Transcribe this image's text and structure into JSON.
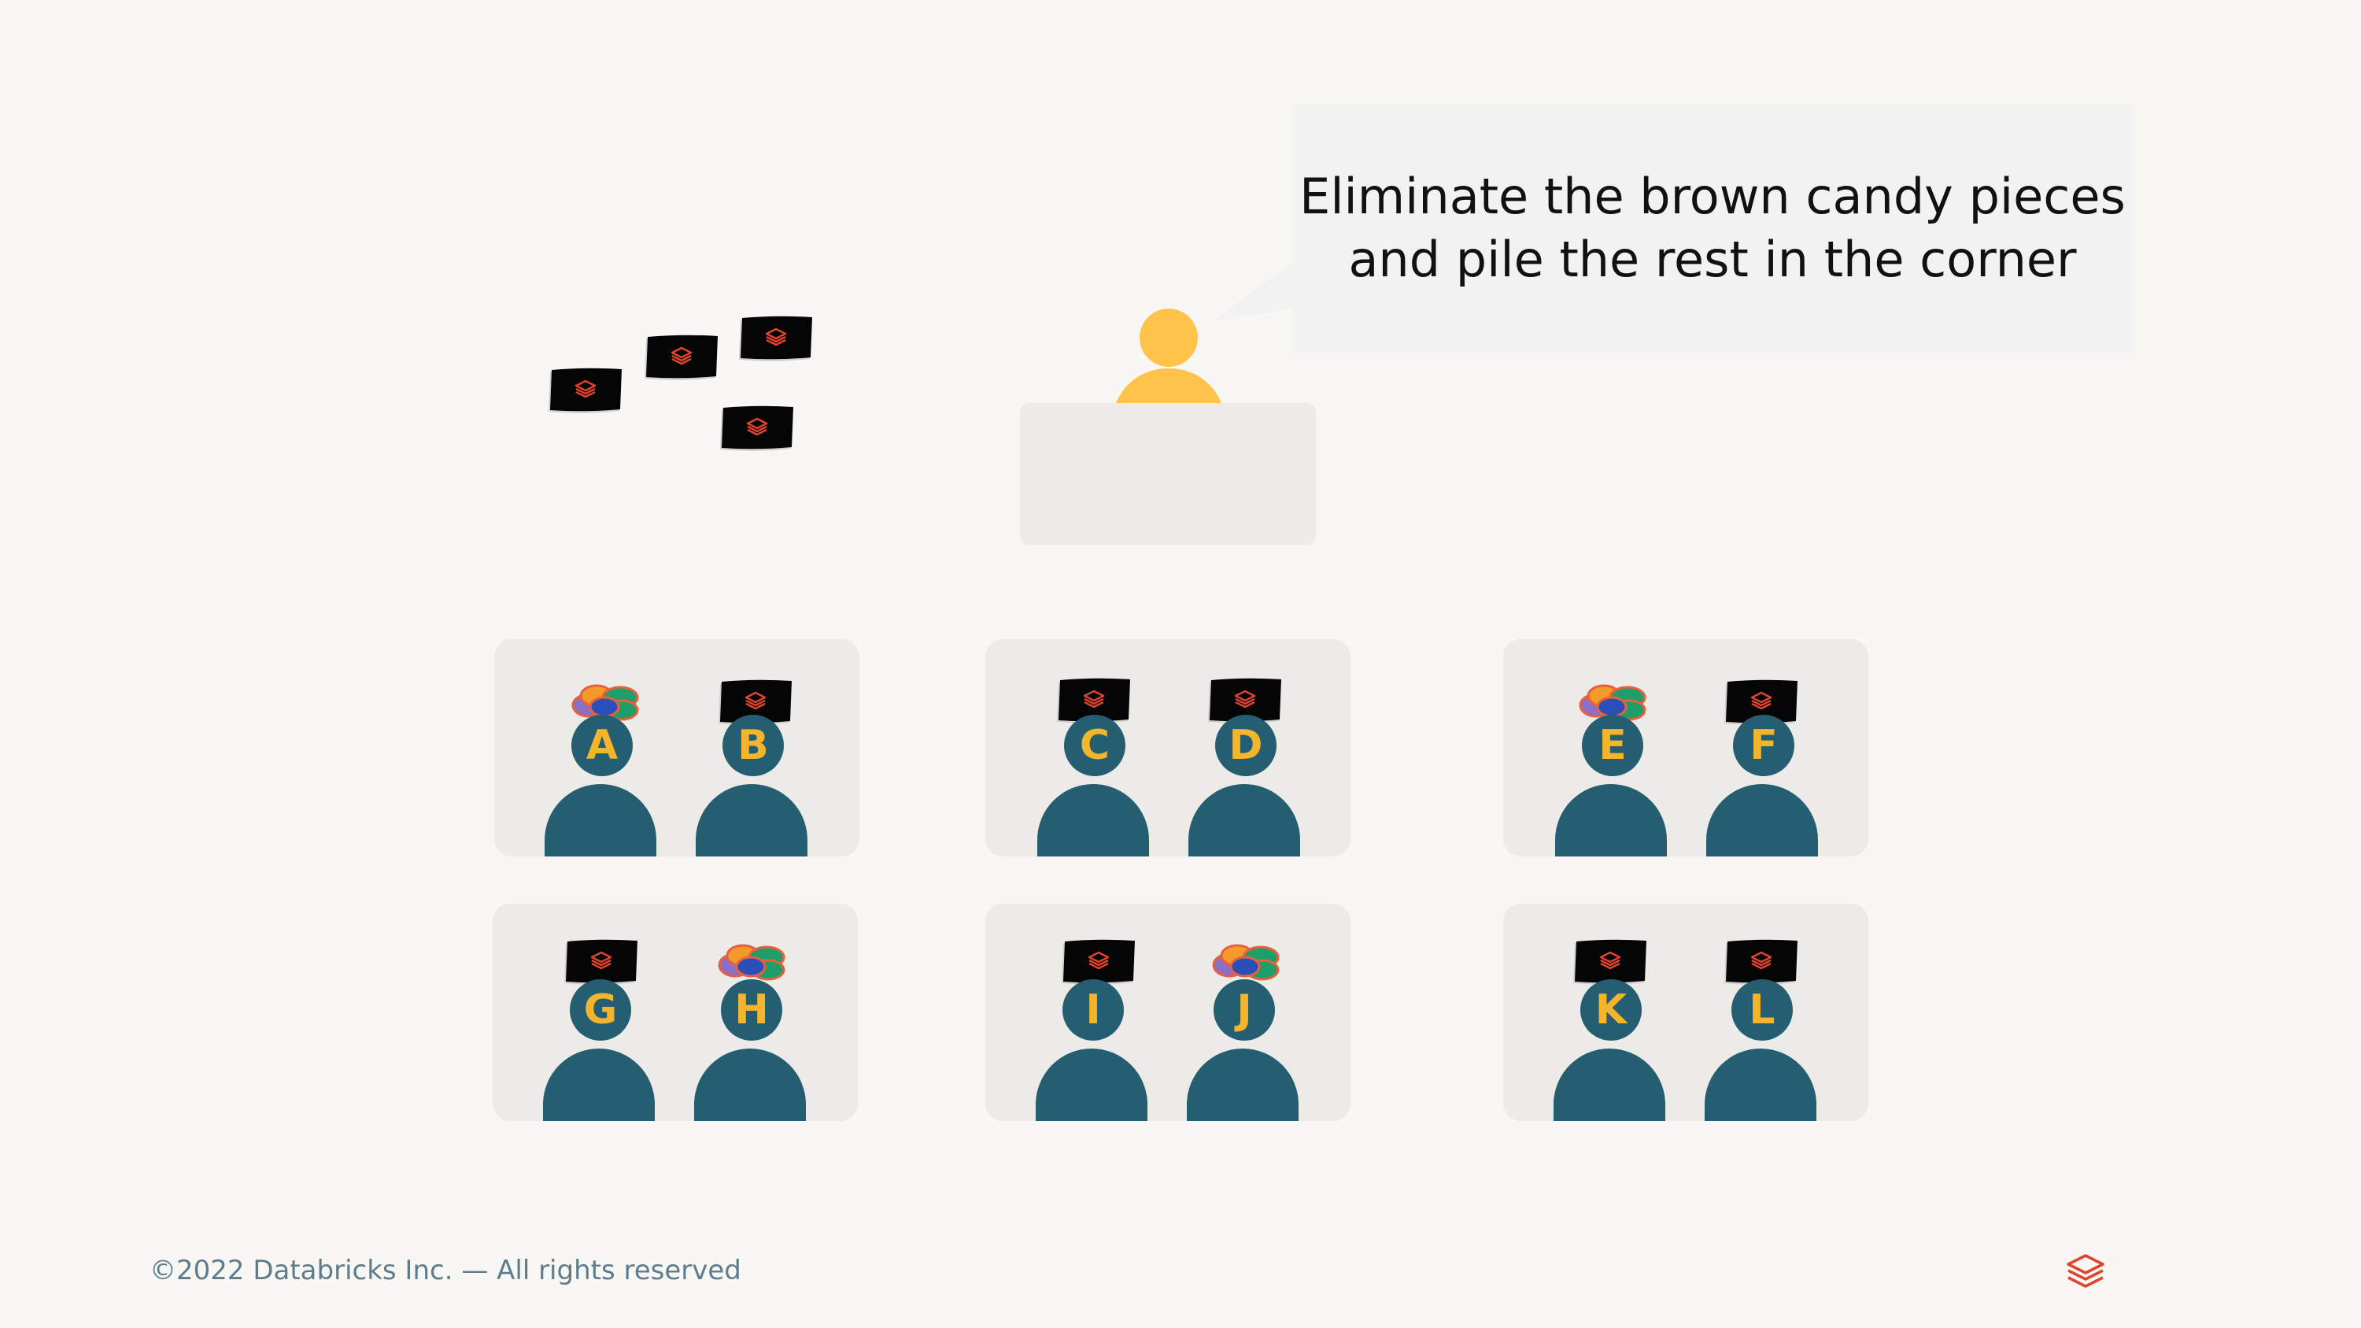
{
  "slide": {
    "instruction_lines": [
      "Eliminate the brown candy pieces",
      "and pile the rest in the corner"
    ],
    "footer": "©2022 Databricks Inc. — All rights reserved"
  },
  "colors": {
    "background": "#f8f7f4",
    "instructor": "#ffc34a",
    "student": "#245e70",
    "student_letter": "#f3b52b",
    "table": "#edebe7",
    "candy_wrapper": "#050505",
    "candy_logo": "#e0442e"
  },
  "corner_pile": {
    "count": 4,
    "icon": "black-candy-icon"
  },
  "tables": [
    {
      "students": [
        {
          "letter": "A",
          "candy": "colorful"
        },
        {
          "letter": "B",
          "candy": "black"
        }
      ]
    },
    {
      "students": [
        {
          "letter": "C",
          "candy": "black"
        },
        {
          "letter": "D",
          "candy": "black"
        }
      ]
    },
    {
      "students": [
        {
          "letter": "E",
          "candy": "colorful"
        },
        {
          "letter": "F",
          "candy": "black"
        }
      ]
    },
    {
      "students": [
        {
          "letter": "G",
          "candy": "black"
        },
        {
          "letter": "H",
          "candy": "colorful"
        }
      ]
    },
    {
      "students": [
        {
          "letter": "I",
          "candy": "black"
        },
        {
          "letter": "J",
          "candy": "colorful"
        }
      ]
    },
    {
      "students": [
        {
          "letter": "K",
          "candy": "black"
        },
        {
          "letter": "L",
          "candy": "black"
        }
      ]
    }
  ]
}
